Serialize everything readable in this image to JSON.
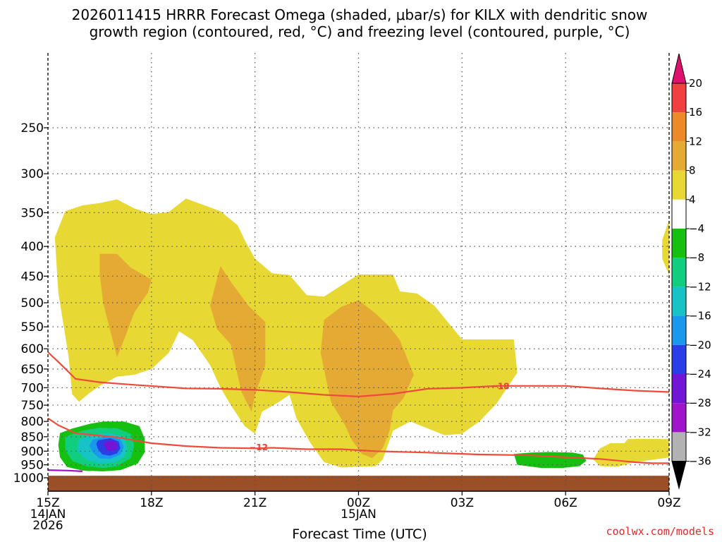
{
  "chart_data": {
    "type": "time-height cross section",
    "title_lines": [
      "2026011415 HRRR Forecast Omega (shaded, μbar/s) for KILX with dendritic snow",
      "growth region (contoured, red, °C) and freezing level (contoured, purple, °C)"
    ],
    "xlabel": "Forecast Time (UTC)",
    "credit": "coolwx.com/models",
    "x_ticks": [
      {
        "h": 0,
        "lines": [
          "15Z",
          "14JAN",
          "2026"
        ]
      },
      {
        "h": 3,
        "lines": [
          "18Z"
        ]
      },
      {
        "h": 6,
        "lines": [
          "21Z"
        ]
      },
      {
        "h": 9,
        "lines": [
          "00Z",
          "15JAN"
        ]
      },
      {
        "h": 12,
        "lines": [
          "03Z"
        ]
      },
      {
        "h": 15,
        "lines": [
          "06Z"
        ]
      },
      {
        "h": 18,
        "lines": [
          "09Z"
        ]
      }
    ],
    "x_range_hours": [
      0,
      18
    ],
    "y_range_hPa": [
      1025,
      200
    ],
    "y_ticks": [
      250,
      300,
      350,
      400,
      450,
      500,
      550,
      600,
      650,
      700,
      750,
      800,
      850,
      900,
      950,
      1000
    ],
    "colorbar": {
      "ticks": [
        "20",
        "16",
        "12",
        "8",
        "4",
        "−4",
        "−8",
        "−12",
        "−16",
        "−20",
        "−24",
        "−28",
        "−32",
        "−36"
      ],
      "colors": [
        "#f04040",
        "#ec8a2a",
        "#e5aa34",
        "#e7d834",
        "#ffffff",
        "#15c010",
        "#10cd80",
        "#17c3c7",
        "#1a98ee",
        "#2a3ee8",
        "#7215d4",
        "#a015cc",
        "#b2b2b2"
      ],
      "top_arrow_color": "#e0106e",
      "bottom_arrow_color": "#000000"
    },
    "omega_regions": [
      {
        "level": "4 to 8",
        "color": "#e7d834",
        "points": [
          [
            0.2,
            386
          ],
          [
            0.5,
            348
          ],
          [
            1,
            340
          ],
          [
            1.5,
            337
          ],
          [
            2,
            332
          ],
          [
            2.5,
            344
          ],
          [
            3,
            352
          ],
          [
            3.5,
            349
          ],
          [
            4,
            331
          ],
          [
            5,
            348
          ],
          [
            5.5,
            368
          ],
          [
            5.7,
            390
          ],
          [
            6,
            420
          ],
          [
            6.5,
            445
          ],
          [
            7,
            448
          ],
          [
            7.5,
            485
          ],
          [
            8,
            488
          ],
          [
            9,
            447
          ],
          [
            10,
            447
          ],
          [
            10.2,
            478
          ],
          [
            10.7,
            482
          ],
          [
            11.2,
            506
          ],
          [
            12,
            578
          ],
          [
            13.5,
            578
          ],
          [
            13.6,
            660
          ],
          [
            13,
            745
          ],
          [
            12.5,
            800
          ],
          [
            12,
            840
          ],
          [
            11.5,
            845
          ],
          [
            10.5,
            800
          ],
          [
            10,
            830
          ],
          [
            9.7,
            930
          ],
          [
            9.5,
            955
          ],
          [
            8.5,
            960
          ],
          [
            8,
            940
          ],
          [
            7.6,
            870
          ],
          [
            7.2,
            790
          ],
          [
            7,
            720
          ],
          [
            6.7,
            740
          ],
          [
            6.2,
            770
          ],
          [
            6,
            840
          ],
          [
            5.7,
            815
          ],
          [
            5.3,
            750
          ],
          [
            5,
            700
          ],
          [
            4.7,
            640
          ],
          [
            4.2,
            580
          ],
          [
            3.8,
            560
          ],
          [
            3.5,
            610
          ],
          [
            3,
            650
          ],
          [
            2.5,
            665
          ],
          [
            2,
            670
          ],
          [
            1.5,
            695
          ],
          [
            1.2,
            715
          ],
          [
            0.9,
            740
          ],
          [
            0.7,
            718
          ],
          [
            0.6,
            620
          ],
          [
            0.3,
            480
          ]
        ]
      },
      {
        "level": "4 to 8",
        "color": "#e7d834",
        "points": [
          [
            15.8,
            930
          ],
          [
            16,
            890
          ],
          [
            16.3,
            872
          ],
          [
            16.7,
            872
          ],
          [
            16.8,
            858
          ],
          [
            17.2,
            857
          ],
          [
            18,
            858
          ],
          [
            18,
            923
          ],
          [
            17,
            940
          ],
          [
            16.5,
            957
          ],
          [
            16,
            955
          ]
        ]
      },
      {
        "level": "4 to 8",
        "color": "#e7d834",
        "points": [
          [
            18,
            360
          ],
          [
            17.8,
            390
          ],
          [
            17.8,
            420
          ],
          [
            18,
            448
          ]
        ]
      },
      {
        "level": "8 to 12",
        "color": "#e5aa34",
        "points": [
          [
            1.5,
            412
          ],
          [
            2,
            412
          ],
          [
            2.4,
            435
          ],
          [
            3,
            456
          ],
          [
            2.9,
            480
          ],
          [
            2.5,
            520
          ],
          [
            2.2,
            580
          ],
          [
            2,
            620
          ],
          [
            1.6,
            500
          ],
          [
            1.5,
            445
          ]
        ]
      },
      {
        "level": "8 to 12",
        "color": "#e5aa34",
        "points": [
          [
            4.7,
            505
          ],
          [
            5,
            432
          ],
          [
            5.3,
            460
          ],
          [
            5.8,
            505
          ],
          [
            6.3,
            540
          ],
          [
            6.3,
            640
          ],
          [
            6,
            720
          ],
          [
            5.9,
            770
          ],
          [
            5.6,
            710
          ],
          [
            5.3,
            590
          ],
          [
            4.9,
            555
          ]
        ]
      },
      {
        "level": "8 to 12",
        "color": "#e5aa34",
        "points": [
          [
            8,
            535
          ],
          [
            8.5,
            508
          ],
          [
            9,
            495
          ],
          [
            9.5,
            522
          ],
          [
            9.9,
            550
          ],
          [
            10.2,
            580
          ],
          [
            10.6,
            665
          ],
          [
            10.3,
            730
          ],
          [
            10,
            765
          ],
          [
            9.9,
            830
          ],
          [
            9.7,
            890
          ],
          [
            9.4,
            925
          ],
          [
            9.1,
            910
          ],
          [
            8.8,
            860
          ],
          [
            8.6,
            810
          ],
          [
            8.2,
            740
          ],
          [
            7.9,
            610
          ]
        ]
      },
      {
        "level": "-4 to -8",
        "color": "#15c010",
        "points": [
          [
            13.5,
            910
          ],
          [
            14,
            905
          ],
          [
            14.5,
            903
          ],
          [
            15.2,
            905
          ],
          [
            15.5,
            912
          ],
          [
            15.6,
            935
          ],
          [
            15.4,
            955
          ],
          [
            14.9,
            962
          ],
          [
            14.3,
            962
          ],
          [
            13.6,
            950
          ]
        ]
      },
      {
        "level": "-4 to -8",
        "color": "#15c010",
        "points": [
          [
            0.35,
            838
          ],
          [
            0.7,
            823
          ],
          [
            1.2,
            808
          ],
          [
            1.6,
            800
          ],
          [
            2.2,
            800
          ],
          [
            2.65,
            815
          ],
          [
            2.8,
            855
          ],
          [
            2.8,
            905
          ],
          [
            2.6,
            945
          ],
          [
            2.1,
            970
          ],
          [
            1.6,
            975
          ],
          [
            1,
            972
          ],
          [
            0.55,
            958
          ],
          [
            0.35,
            922
          ],
          [
            0.3,
            878
          ]
        ]
      },
      {
        "level": "-8 to -12",
        "color": "#10cd80",
        "points": [
          [
            0.5,
            850
          ],
          [
            1,
            830
          ],
          [
            1.5,
            820
          ],
          [
            2,
            822
          ],
          [
            2.4,
            840
          ],
          [
            2.5,
            880
          ],
          [
            2.4,
            925
          ],
          [
            2,
            955
          ],
          [
            1.6,
            962
          ],
          [
            1.1,
            955
          ],
          [
            0.7,
            935
          ],
          [
            0.5,
            895
          ]
        ]
      },
      {
        "level": "-12 to -16",
        "color": "#17c3c7",
        "points": [
          [
            0.9,
            860
          ],
          [
            1.3,
            842
          ],
          [
            1.8,
            838
          ],
          [
            2.2,
            852
          ],
          [
            2.3,
            888
          ],
          [
            2.2,
            922
          ],
          [
            1.9,
            942
          ],
          [
            1.5,
            945
          ],
          [
            1.1,
            930
          ],
          [
            0.85,
            898
          ]
        ]
      },
      {
        "level": "-16 to -20",
        "color": "#1a98ee",
        "points": [
          [
            1.3,
            860
          ],
          [
            1.7,
            848
          ],
          [
            2.1,
            858
          ],
          [
            2.2,
            885
          ],
          [
            2.1,
            912
          ],
          [
            1.8,
            928
          ],
          [
            1.5,
            926
          ],
          [
            1.3,
            905
          ],
          [
            1.2,
            880
          ]
        ]
      },
      {
        "level": "-20 to -24",
        "color": "#2a3ee8",
        "points": [
          [
            1.45,
            862
          ],
          [
            1.8,
            855
          ],
          [
            2.05,
            866
          ],
          [
            2.1,
            890
          ],
          [
            2,
            908
          ],
          [
            1.8,
            916
          ],
          [
            1.58,
            912
          ],
          [
            1.45,
            893
          ],
          [
            1.4,
            874
          ]
        ]
      },
      {
        "level": "-24 to -28",
        "color": "#7215d4",
        "points": [
          [
            1.65,
            866
          ],
          [
            1.9,
            863
          ],
          [
            2.02,
            876
          ],
          [
            2,
            892
          ],
          [
            1.85,
            900
          ],
          [
            1.7,
            896
          ],
          [
            1.62,
            880
          ]
        ]
      }
    ],
    "contours": [
      {
        "name": "dendritic growth -18 °C",
        "label": "−18",
        "color": "#f04a3a",
        "points": [
          [
            0,
            608
          ],
          [
            0.3,
            632
          ],
          [
            0.8,
            676
          ],
          [
            1.5,
            685
          ],
          [
            2.5,
            692
          ],
          [
            4,
            702
          ],
          [
            5,
            703
          ],
          [
            6,
            706
          ],
          [
            7,
            712
          ],
          [
            8,
            720
          ],
          [
            9,
            725
          ],
          [
            10,
            717
          ],
          [
            11,
            703
          ],
          [
            12,
            700
          ],
          [
            13,
            695
          ],
          [
            14,
            695
          ],
          [
            15,
            695
          ],
          [
            16,
            702
          ],
          [
            17,
            708
          ],
          [
            18,
            712
          ]
        ],
        "label_at": [
          13.1,
          695
        ]
      },
      {
        "name": "dendritic growth -12 °C",
        "label": "−12",
        "color": "#f04a3a",
        "points": [
          [
            0,
            790
          ],
          [
            0.3,
            812
          ],
          [
            0.8,
            838
          ],
          [
            2,
            852
          ],
          [
            3,
            872
          ],
          [
            4,
            882
          ],
          [
            5,
            888
          ],
          [
            6,
            890
          ],
          [
            6.5,
            888
          ],
          [
            7.5,
            893
          ],
          [
            8.5,
            893
          ],
          [
            9.5,
            900
          ],
          [
            11,
            905
          ],
          [
            12.5,
            912
          ],
          [
            14,
            915
          ],
          [
            15,
            922
          ],
          [
            16,
            928
          ],
          [
            17,
            940
          ],
          [
            17.5,
            944
          ],
          [
            18,
            944
          ]
        ],
        "label_at": [
          6.1,
          885
        ]
      },
      {
        "name": "freezing level 0 °C",
        "label": "",
        "color": "#a010c8",
        "points": [
          [
            0,
            970
          ],
          [
            0.6,
            972
          ],
          [
            1,
            975
          ]
        ],
        "label_at": null
      }
    ],
    "ground": {
      "color": "#9b4f27",
      "top_hPa": 992
    }
  }
}
